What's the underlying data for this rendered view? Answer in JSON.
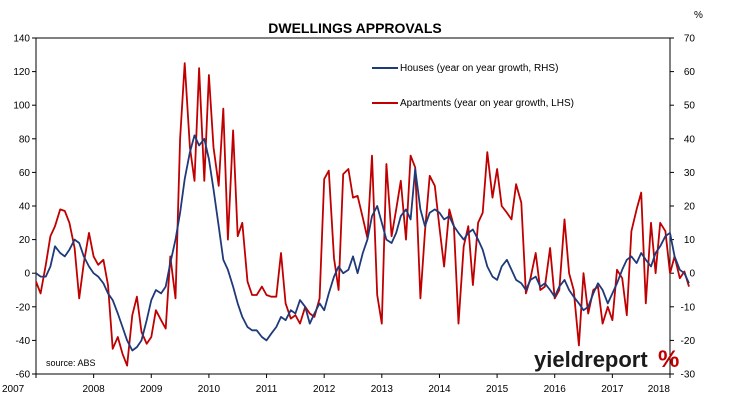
{
  "chart_data": {
    "type": "line",
    "title": "DWELLINGS APPROVALS",
    "left_axis": {
      "unit_label": "",
      "ylim": [
        -60,
        140
      ],
      "ticks": [
        140,
        120,
        100,
        80,
        60,
        40,
        20,
        0,
        -20,
        -40,
        -60
      ]
    },
    "right_axis": {
      "unit_label": "%",
      "ylim": [
        -30,
        70
      ],
      "ticks": [
        70,
        60,
        50,
        40,
        30,
        20,
        10,
        0,
        -10,
        -20,
        -30
      ]
    },
    "x_axis": {
      "xlim": [
        2007,
        2018
      ],
      "tick_labels": [
        "2007",
        "2008",
        "2009",
        "2010",
        "2011",
        "2012",
        "2013",
        "2014",
        "2015",
        "2016",
        "2017",
        "2018"
      ]
    },
    "grid": false,
    "legend_position": "top-right",
    "source_text": "source: ABS",
    "logo": {
      "word": "yieldreport",
      "symbol": "%"
    },
    "series": [
      {
        "name": "Houses (year on year growth, RHS)",
        "axis": "right",
        "color": "#1f3a7a",
        "points": [
          [
            2007.0,
            0
          ],
          [
            2007.08,
            -1
          ],
          [
            2007.17,
            -1
          ],
          [
            2007.25,
            2
          ],
          [
            2007.33,
            8
          ],
          [
            2007.42,
            6
          ],
          [
            2007.5,
            5
          ],
          [
            2007.58,
            7
          ],
          [
            2007.67,
            10
          ],
          [
            2007.75,
            9
          ],
          [
            2007.83,
            5
          ],
          [
            2007.92,
            2
          ],
          [
            2008.0,
            0
          ],
          [
            2008.08,
            -1
          ],
          [
            2008.17,
            -3
          ],
          [
            2008.25,
            -6
          ],
          [
            2008.33,
            -8
          ],
          [
            2008.42,
            -12
          ],
          [
            2008.5,
            -16
          ],
          [
            2008.58,
            -20
          ],
          [
            2008.67,
            -23
          ],
          [
            2008.75,
            -22
          ],
          [
            2008.83,
            -20
          ],
          [
            2008.92,
            -14
          ],
          [
            2009.0,
            -8
          ],
          [
            2009.08,
            -5
          ],
          [
            2009.17,
            -6
          ],
          [
            2009.25,
            -4
          ],
          [
            2009.33,
            3
          ],
          [
            2009.42,
            10
          ],
          [
            2009.5,
            18
          ],
          [
            2009.58,
            28
          ],
          [
            2009.67,
            36
          ],
          [
            2009.75,
            41
          ],
          [
            2009.83,
            38
          ],
          [
            2009.92,
            40
          ],
          [
            2010.0,
            34
          ],
          [
            2010.08,
            25
          ],
          [
            2010.17,
            14
          ],
          [
            2010.25,
            4
          ],
          [
            2010.33,
            1
          ],
          [
            2010.42,
            -4
          ],
          [
            2010.5,
            -9
          ],
          [
            2010.58,
            -13
          ],
          [
            2010.67,
            -16
          ],
          [
            2010.75,
            -17
          ],
          [
            2010.83,
            -17
          ],
          [
            2010.92,
            -19
          ],
          [
            2011.0,
            -20
          ],
          [
            2011.08,
            -18
          ],
          [
            2011.17,
            -16
          ],
          [
            2011.25,
            -13
          ],
          [
            2011.33,
            -14
          ],
          [
            2011.42,
            -11
          ],
          [
            2011.5,
            -12
          ],
          [
            2011.58,
            -8
          ],
          [
            2011.67,
            -10
          ],
          [
            2011.75,
            -15
          ],
          [
            2011.83,
            -12
          ],
          [
            2011.92,
            -9
          ],
          [
            2012.0,
            -11
          ],
          [
            2012.08,
            -6
          ],
          [
            2012.17,
            -1
          ],
          [
            2012.25,
            2
          ],
          [
            2012.33,
            0
          ],
          [
            2012.42,
            1
          ],
          [
            2012.5,
            5
          ],
          [
            2012.58,
            0
          ],
          [
            2012.67,
            6
          ],
          [
            2012.75,
            10
          ],
          [
            2012.83,
            17
          ],
          [
            2012.92,
            20
          ],
          [
            2013.0,
            15
          ],
          [
            2013.08,
            10
          ],
          [
            2013.17,
            9
          ],
          [
            2013.25,
            12
          ],
          [
            2013.33,
            17
          ],
          [
            2013.42,
            19
          ],
          [
            2013.5,
            16
          ],
          [
            2013.58,
            31
          ],
          [
            2013.67,
            19
          ],
          [
            2013.75,
            14
          ],
          [
            2013.83,
            18
          ],
          [
            2013.92,
            19
          ],
          [
            2014.0,
            18
          ],
          [
            2014.08,
            16
          ],
          [
            2014.17,
            17
          ],
          [
            2014.25,
            14
          ],
          [
            2014.33,
            12
          ],
          [
            2014.42,
            10
          ],
          [
            2014.5,
            12
          ],
          [
            2014.58,
            13
          ],
          [
            2014.67,
            10
          ],
          [
            2014.75,
            7
          ],
          [
            2014.83,
            2
          ],
          [
            2014.92,
            -1
          ],
          [
            2015.0,
            -2
          ],
          [
            2015.08,
            2
          ],
          [
            2015.17,
            4
          ],
          [
            2015.25,
            1
          ],
          [
            2015.33,
            -2
          ],
          [
            2015.42,
            -3
          ],
          [
            2015.5,
            -5
          ],
          [
            2015.58,
            -2
          ],
          [
            2015.67,
            -1
          ],
          [
            2015.75,
            -4
          ],
          [
            2015.83,
            -3
          ],
          [
            2015.92,
            -5
          ],
          [
            2016.0,
            -7
          ],
          [
            2016.08,
            -4
          ],
          [
            2016.17,
            -2
          ],
          [
            2016.25,
            -5
          ],
          [
            2016.33,
            -7
          ],
          [
            2016.42,
            -9
          ],
          [
            2016.5,
            -11
          ],
          [
            2016.58,
            -10
          ],
          [
            2016.67,
            -6
          ],
          [
            2016.75,
            -3
          ],
          [
            2016.83,
            -5
          ],
          [
            2016.92,
            -9
          ],
          [
            2017.0,
            -6
          ],
          [
            2017.08,
            -3
          ],
          [
            2017.17,
            1
          ],
          [
            2017.25,
            4
          ],
          [
            2017.33,
            5
          ],
          [
            2017.42,
            3
          ],
          [
            2017.5,
            6
          ],
          [
            2017.58,
            4
          ],
          [
            2017.67,
            2
          ],
          [
            2017.75,
            6
          ],
          [
            2017.83,
            8
          ],
          [
            2017.92,
            11
          ],
          [
            2018.0,
            12
          ],
          [
            2018.08,
            5
          ],
          [
            2018.17,
            1
          ],
          [
            2018.25,
            0
          ],
          [
            2018.33,
            -3
          ]
        ]
      },
      {
        "name": "Apartments (year on year growth, LHS)",
        "axis": "left",
        "color": "#c00000",
        "points": [
          [
            2007.0,
            -5
          ],
          [
            2007.08,
            -12
          ],
          [
            2007.17,
            5
          ],
          [
            2007.25,
            22
          ],
          [
            2007.33,
            28
          ],
          [
            2007.42,
            38
          ],
          [
            2007.5,
            37
          ],
          [
            2007.58,
            30
          ],
          [
            2007.67,
            15
          ],
          [
            2007.75,
            -15
          ],
          [
            2007.83,
            6
          ],
          [
            2007.92,
            24
          ],
          [
            2008.0,
            10
          ],
          [
            2008.08,
            5
          ],
          [
            2008.17,
            8
          ],
          [
            2008.25,
            -7
          ],
          [
            2008.33,
            -45
          ],
          [
            2008.42,
            -38
          ],
          [
            2008.5,
            -48
          ],
          [
            2008.58,
            -55
          ],
          [
            2008.67,
            -25
          ],
          [
            2008.75,
            -14
          ],
          [
            2008.83,
            -35
          ],
          [
            2008.92,
            -42
          ],
          [
            2009.0,
            -38
          ],
          [
            2009.08,
            -22
          ],
          [
            2009.17,
            -28
          ],
          [
            2009.25,
            -33
          ],
          [
            2009.33,
            10
          ],
          [
            2009.42,
            -15
          ],
          [
            2009.5,
            80
          ],
          [
            2009.58,
            125
          ],
          [
            2009.67,
            75
          ],
          [
            2009.75,
            55
          ],
          [
            2009.83,
            122
          ],
          [
            2009.92,
            55
          ],
          [
            2010.0,
            118
          ],
          [
            2010.08,
            75
          ],
          [
            2010.17,
            52
          ],
          [
            2010.25,
            98
          ],
          [
            2010.33,
            20
          ],
          [
            2010.42,
            85
          ],
          [
            2010.5,
            22
          ],
          [
            2010.58,
            30
          ],
          [
            2010.67,
            -5
          ],
          [
            2010.75,
            -13
          ],
          [
            2010.83,
            -13
          ],
          [
            2010.92,
            -8
          ],
          [
            2011.0,
            -13
          ],
          [
            2011.08,
            -14
          ],
          [
            2011.17,
            -14
          ],
          [
            2011.25,
            12
          ],
          [
            2011.33,
            -18
          ],
          [
            2011.42,
            -27
          ],
          [
            2011.5,
            -25
          ],
          [
            2011.58,
            -30
          ],
          [
            2011.67,
            -20
          ],
          [
            2011.75,
            -24
          ],
          [
            2011.83,
            -26
          ],
          [
            2011.92,
            -15
          ],
          [
            2012.0,
            56
          ],
          [
            2012.08,
            61
          ],
          [
            2012.17,
            9
          ],
          [
            2012.25,
            -10
          ],
          [
            2012.33,
            59
          ],
          [
            2012.42,
            62
          ],
          [
            2012.5,
            45
          ],
          [
            2012.58,
            46
          ],
          [
            2012.67,
            33
          ],
          [
            2012.75,
            21
          ],
          [
            2012.83,
            70
          ],
          [
            2012.92,
            -13
          ],
          [
            2013.0,
            -30
          ],
          [
            2013.08,
            65
          ],
          [
            2013.17,
            22
          ],
          [
            2013.25,
            38
          ],
          [
            2013.33,
            55
          ],
          [
            2013.42,
            20
          ],
          [
            2013.5,
            70
          ],
          [
            2013.58,
            63
          ],
          [
            2013.67,
            -15
          ],
          [
            2013.75,
            25
          ],
          [
            2013.83,
            58
          ],
          [
            2013.92,
            52
          ],
          [
            2014.0,
            27
          ],
          [
            2014.08,
            4
          ],
          [
            2014.17,
            38
          ],
          [
            2014.25,
            28
          ],
          [
            2014.33,
            -30
          ],
          [
            2014.42,
            16
          ],
          [
            2014.5,
            28
          ],
          [
            2014.58,
            -7
          ],
          [
            2014.67,
            30
          ],
          [
            2014.75,
            36
          ],
          [
            2014.83,
            72
          ],
          [
            2014.92,
            45
          ],
          [
            2015.0,
            62
          ],
          [
            2015.08,
            40
          ],
          [
            2015.17,
            36
          ],
          [
            2015.25,
            32
          ],
          [
            2015.33,
            53
          ],
          [
            2015.42,
            42
          ],
          [
            2015.5,
            -12
          ],
          [
            2015.58,
            -3
          ],
          [
            2015.67,
            12
          ],
          [
            2015.75,
            -10
          ],
          [
            2015.83,
            -8
          ],
          [
            2015.92,
            15
          ],
          [
            2016.0,
            -15
          ],
          [
            2016.08,
            -10
          ],
          [
            2016.17,
            32
          ],
          [
            2016.25,
            0
          ],
          [
            2016.33,
            -10
          ],
          [
            2016.42,
            -43
          ],
          [
            2016.5,
            0
          ],
          [
            2016.58,
            -24
          ],
          [
            2016.67,
            -10
          ],
          [
            2016.75,
            -8
          ],
          [
            2016.83,
            -30
          ],
          [
            2016.92,
            -20
          ],
          [
            2017.0,
            -28
          ],
          [
            2017.08,
            2
          ],
          [
            2017.17,
            -3
          ],
          [
            2017.25,
            -25
          ],
          [
            2017.33,
            25
          ],
          [
            2017.42,
            38
          ],
          [
            2017.5,
            48
          ],
          [
            2017.58,
            -18
          ],
          [
            2017.67,
            30
          ],
          [
            2017.75,
            0
          ],
          [
            2017.83,
            30
          ],
          [
            2017.92,
            25
          ],
          [
            2018.0,
            0
          ],
          [
            2018.08,
            10
          ],
          [
            2018.17,
            -3
          ],
          [
            2018.25,
            1
          ],
          [
            2018.33,
            -8
          ]
        ]
      }
    ]
  }
}
